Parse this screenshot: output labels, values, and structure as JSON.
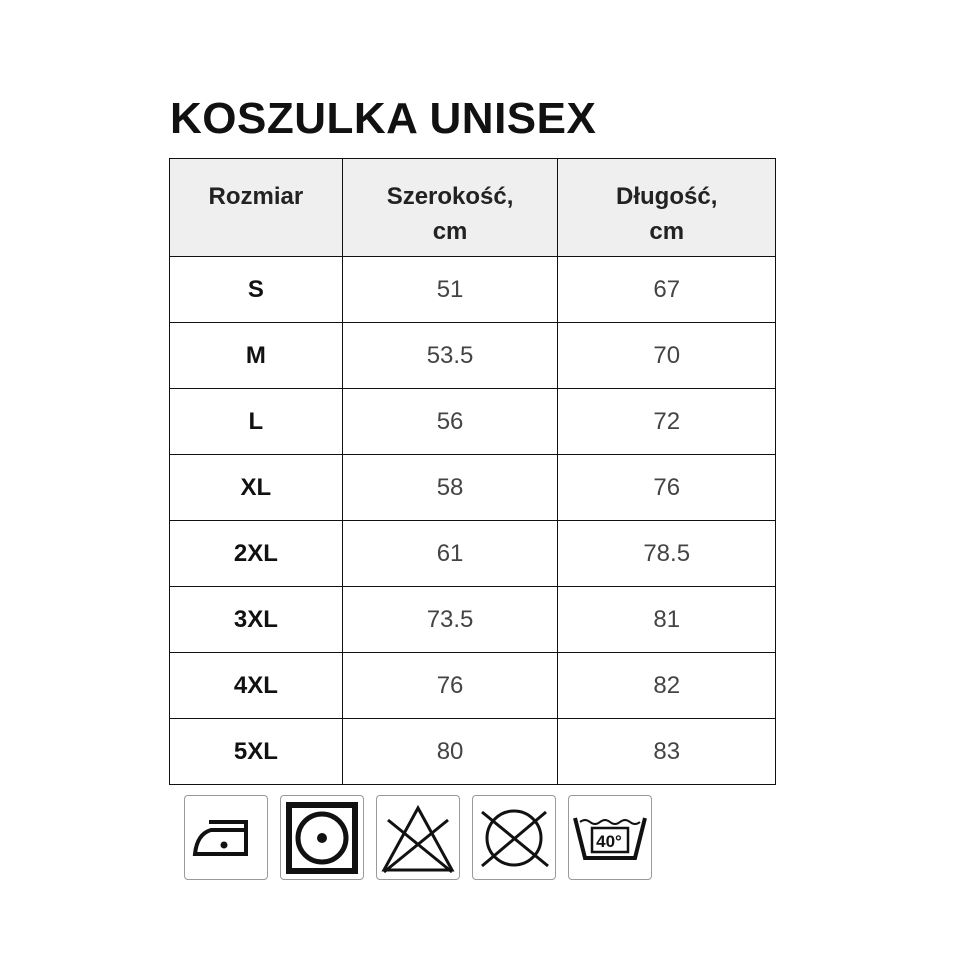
{
  "title": "KOSZULKA UNISEX",
  "table": {
    "headers": [
      "Rozmiar",
      "Szerokość,\ncm",
      "Długość,\ncm"
    ],
    "header_lines": [
      [
        "Rozmiar"
      ],
      [
        "Szerokość,",
        "cm"
      ],
      [
        "Długość,",
        "cm"
      ]
    ],
    "rows": [
      [
        "S",
        "51",
        "67"
      ],
      [
        "M",
        "53.5",
        "70"
      ],
      [
        "L",
        "56",
        "72"
      ],
      [
        "XL",
        "58",
        "76"
      ],
      [
        "2XL",
        "61",
        "78.5"
      ],
      [
        "3XL",
        "73.5",
        "81"
      ],
      [
        "4XL",
        "76",
        "82"
      ],
      [
        "5XL",
        "80",
        "83"
      ]
    ]
  },
  "care_icons": [
    "iron-medium-icon",
    "tumble-dry-icon",
    "no-bleach-icon",
    "no-dry-clean-icon",
    "wash-40-icon"
  ],
  "wash_temp": "40°"
}
